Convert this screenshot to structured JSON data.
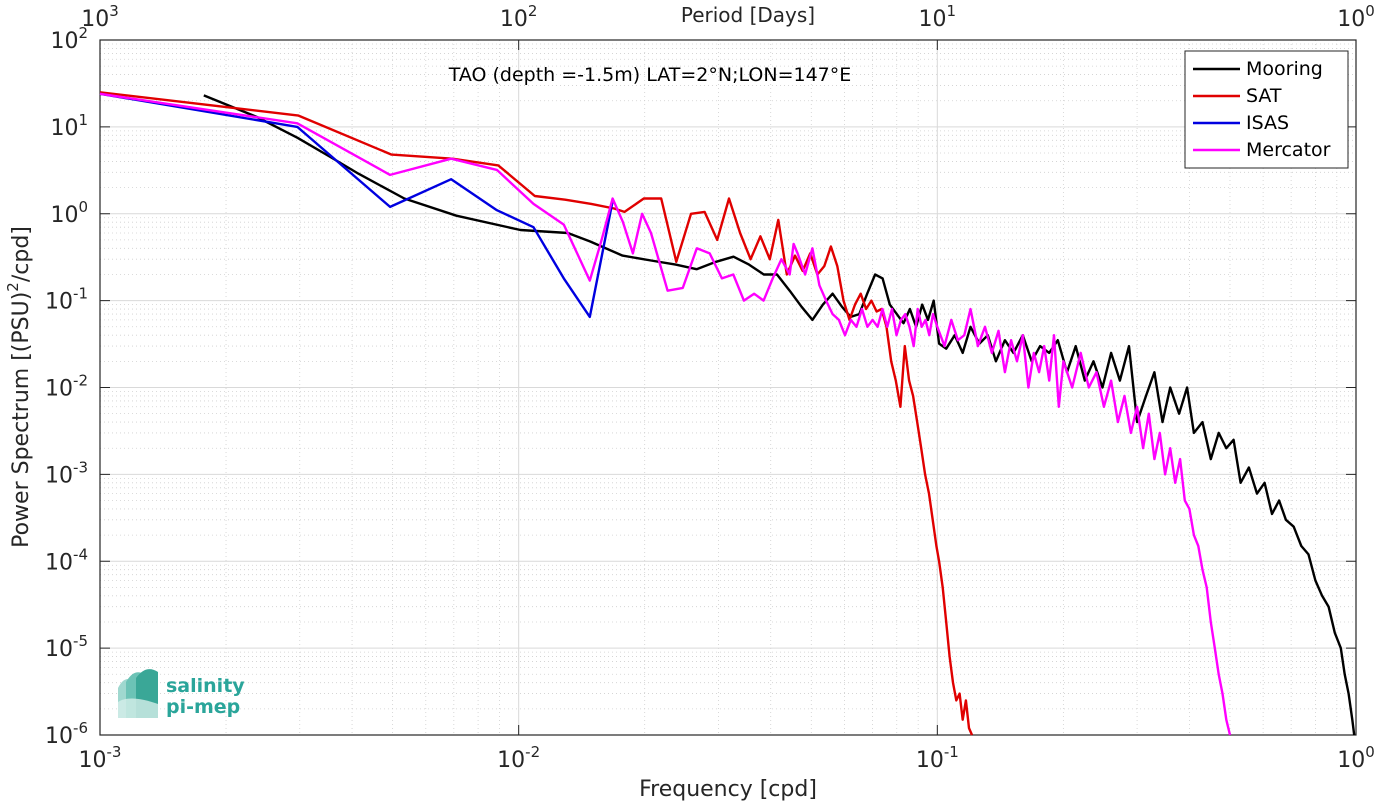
{
  "chart_data": {
    "type": "line",
    "title": "TAO (depth =-1.5m) LAT=2°N;LON=147°E",
    "xlabel": "Frequency [cpd]",
    "ylabel_main": "Power Spectrum [(PSU)",
    "ylabel_sup": "2",
    "ylabel_tail": "/cpd]",
    "top_axis_label": "Period [Days]",
    "x_scale": "log",
    "y_scale": "log",
    "xlim": [
      0.001,
      1
    ],
    "ylim": [
      1e-06,
      100
    ],
    "grid": true,
    "legend_position": "top-right",
    "x_ticks": [
      {
        "base": "10",
        "exp": "-3",
        "value": 0.001
      },
      {
        "base": "10",
        "exp": "-2",
        "value": 0.01
      },
      {
        "base": "10",
        "exp": "-1",
        "value": 0.1
      },
      {
        "base": "10",
        "exp": "0",
        "value": 1
      }
    ],
    "top_ticks": [
      {
        "base": "10",
        "exp": "3",
        "value": 0.001
      },
      {
        "base": "10",
        "exp": "2",
        "value": 0.01
      },
      {
        "base": "10",
        "exp": "1",
        "value": 0.1
      },
      {
        "base": "10",
        "exp": "0",
        "value": 1
      }
    ],
    "y_ticks": [
      {
        "base": "10",
        "exp": "2",
        "value": 100
      },
      {
        "base": "10",
        "exp": "1",
        "value": 10
      },
      {
        "base": "10",
        "exp": "0",
        "value": 1
      },
      {
        "base": "10",
        "exp": "-1",
        "value": 0.1
      },
      {
        "base": "10",
        "exp": "-2",
        "value": 0.01
      },
      {
        "base": "10",
        "exp": "-3",
        "value": 0.001
      },
      {
        "base": "10",
        "exp": "-4",
        "value": 0.0001
      },
      {
        "base": "10",
        "exp": "-5",
        "value": 1e-05
      },
      {
        "base": "10",
        "exp": "-6",
        "value": 1e-06
      }
    ],
    "series": [
      {
        "name": "Mooring",
        "color": "#000000",
        "points": [
          [
            0.00177,
            23
          ],
          [
            0.00237,
            13
          ],
          [
            0.00296,
            7.5
          ],
          [
            0.00355,
            4.5
          ],
          [
            0.00414,
            2.9
          ],
          [
            0.00533,
            1.5
          ],
          [
            0.0071,
            0.95
          ],
          [
            0.0101,
            0.65
          ],
          [
            0.0131,
            0.6
          ],
          [
            0.0148,
            0.48
          ],
          [
            0.0177,
            0.33
          ],
          [
            0.0207,
            0.29
          ],
          [
            0.0237,
            0.26
          ],
          [
            0.0266,
            0.23
          ],
          [
            0.0296,
            0.28
          ],
          [
            0.0326,
            0.32
          ],
          [
            0.0355,
            0.26
          ],
          [
            0.0385,
            0.2
          ],
          [
            0.0414,
            0.2
          ],
          [
            0.0444,
            0.13
          ],
          [
            0.0474,
            0.085
          ],
          [
            0.0503,
            0.06
          ],
          [
            0.0533,
            0.09
          ],
          [
            0.0562,
            0.12
          ],
          [
            0.0592,
            0.085
          ],
          [
            0.0621,
            0.065
          ],
          [
            0.0651,
            0.07
          ],
          [
            0.068,
            0.12
          ],
          [
            0.071,
            0.2
          ],
          [
            0.074,
            0.18
          ],
          [
            0.077,
            0.09
          ],
          [
            0.08,
            0.07
          ],
          [
            0.083,
            0.055
          ],
          [
            0.086,
            0.08
          ],
          [
            0.089,
            0.05
          ],
          [
            0.092,
            0.09
          ],
          [
            0.095,
            0.06
          ],
          [
            0.098,
            0.1
          ],
          [
            0.101,
            0.032
          ],
          [
            0.105,
            0.028
          ],
          [
            0.11,
            0.04
          ],
          [
            0.115,
            0.025
          ],
          [
            0.12,
            0.05
          ],
          [
            0.126,
            0.032
          ],
          [
            0.132,
            0.04
          ],
          [
            0.138,
            0.02
          ],
          [
            0.145,
            0.035
          ],
          [
            0.152,
            0.025
          ],
          [
            0.16,
            0.04
          ],
          [
            0.168,
            0.02
          ],
          [
            0.176,
            0.03
          ],
          [
            0.185,
            0.025
          ],
          [
            0.194,
            0.035
          ],
          [
            0.204,
            0.015
          ],
          [
            0.214,
            0.03
          ],
          [
            0.225,
            0.012
          ],
          [
            0.236,
            0.02
          ],
          [
            0.248,
            0.01
          ],
          [
            0.26,
            0.025
          ],
          [
            0.273,
            0.012
          ],
          [
            0.287,
            0.03
          ],
          [
            0.3,
            0.004
          ],
          [
            0.315,
            0.008
          ],
          [
            0.33,
            0.015
          ],
          [
            0.345,
            0.004
          ],
          [
            0.36,
            0.01
          ],
          [
            0.378,
            0.005
          ],
          [
            0.395,
            0.01
          ],
          [
            0.41,
            0.003
          ],
          [
            0.43,
            0.004
          ],
          [
            0.45,
            0.0015
          ],
          [
            0.47,
            0.003
          ],
          [
            0.49,
            0.002
          ],
          [
            0.51,
            0.0025
          ],
          [
            0.53,
            0.0008
          ],
          [
            0.555,
            0.0012
          ],
          [
            0.58,
            0.0006
          ],
          [
            0.605,
            0.0008
          ],
          [
            0.63,
            0.00035
          ],
          [
            0.655,
            0.0005
          ],
          [
            0.68,
            0.0003
          ],
          [
            0.71,
            0.00025
          ],
          [
            0.74,
            0.00015
          ],
          [
            0.77,
            0.00012
          ],
          [
            0.8,
            6e-05
          ],
          [
            0.83,
            4e-05
          ],
          [
            0.86,
            3e-05
          ],
          [
            0.89,
            1.5e-05
          ],
          [
            0.92,
            1e-05
          ],
          [
            0.94,
            5e-06
          ],
          [
            0.96,
            3e-06
          ],
          [
            0.98,
            1.5e-06
          ],
          [
            0.99,
            1e-06
          ]
        ]
      },
      {
        "name": "SAT",
        "color": "#e00000",
        "points": [
          [
            0.001,
            25
          ],
          [
            0.00199,
            17
          ],
          [
            0.00298,
            13.5
          ],
          [
            0.00497,
            4.8
          ],
          [
            0.00695,
            4.3
          ],
          [
            0.00894,
            3.6
          ],
          [
            0.01093,
            1.6
          ],
          [
            0.01292,
            1.45
          ],
          [
            0.01491,
            1.3
          ],
          [
            0.0169,
            1.15
          ],
          [
            0.0179,
            1.05
          ],
          [
            0.0199,
            1.5
          ],
          [
            0.0219,
            1.5
          ],
          [
            0.0238,
            0.28
          ],
          [
            0.0258,
            1.0
          ],
          [
            0.0278,
            1.05
          ],
          [
            0.0298,
            0.5
          ],
          [
            0.0318,
            1.5
          ],
          [
            0.0338,
            0.6
          ],
          [
            0.0358,
            0.3
          ],
          [
            0.0378,
            0.55
          ],
          [
            0.0398,
            0.3
          ],
          [
            0.0417,
            0.85
          ],
          [
            0.0437,
            0.2
          ],
          [
            0.0457,
            0.33
          ],
          [
            0.0477,
            0.22
          ],
          [
            0.0497,
            0.35
          ],
          [
            0.0517,
            0.2
          ],
          [
            0.0537,
            0.25
          ],
          [
            0.0557,
            0.42
          ],
          [
            0.0577,
            0.25
          ],
          [
            0.0597,
            0.1
          ],
          [
            0.0617,
            0.06
          ],
          [
            0.0636,
            0.09
          ],
          [
            0.0656,
            0.12
          ],
          [
            0.0676,
            0.08
          ],
          [
            0.0696,
            0.1
          ],
          [
            0.0716,
            0.075
          ],
          [
            0.0736,
            0.08
          ],
          [
            0.0756,
            0.05
          ],
          [
            0.0776,
            0.02
          ],
          [
            0.0796,
            0.012
          ],
          [
            0.0816,
            0.006
          ],
          [
            0.0836,
            0.03
          ],
          [
            0.0856,
            0.012
          ],
          [
            0.0875,
            0.008
          ],
          [
            0.0895,
            0.004
          ],
          [
            0.0915,
            0.002
          ],
          [
            0.0935,
            0.001
          ],
          [
            0.0955,
            0.0006
          ],
          [
            0.0975,
            0.0003
          ],
          [
            0.0995,
            0.00015
          ],
          [
            0.101,
            0.0001
          ],
          [
            0.103,
            5e-05
          ],
          [
            0.105,
            2e-05
          ],
          [
            0.107,
            8e-06
          ],
          [
            0.109,
            4e-06
          ],
          [
            0.111,
            2.5e-06
          ],
          [
            0.113,
            3e-06
          ],
          [
            0.115,
            1.5e-06
          ],
          [
            0.117,
            2.5e-06
          ],
          [
            0.119,
            1.2e-06
          ],
          [
            0.121,
            1e-06
          ]
        ]
      },
      {
        "name": "ISAS",
        "color": "#0000e0",
        "points": [
          [
            0.001,
            24
          ],
          [
            0.00296,
            10
          ],
          [
            0.00493,
            1.2
          ],
          [
            0.0069,
            2.5
          ],
          [
            0.00887,
            1.1
          ],
          [
            0.01085,
            0.7
          ],
          [
            0.01282,
            0.18
          ],
          [
            0.01479,
            0.065
          ],
          [
            0.01676,
            1.4
          ]
        ]
      },
      {
        "name": "Mercator",
        "color": "#ff00ff",
        "points": [
          [
            0.001,
            24
          ],
          [
            0.00296,
            11
          ],
          [
            0.00493,
            2.8
          ],
          [
            0.0069,
            4.3
          ],
          [
            0.00887,
            3.2
          ],
          [
            0.01085,
            1.3
          ],
          [
            0.01282,
            0.75
          ],
          [
            0.01479,
            0.17
          ],
          [
            0.01578,
            0.5
          ],
          [
            0.01676,
            1.5
          ],
          [
            0.01775,
            0.8
          ],
          [
            0.01874,
            0.35
          ],
          [
            0.01972,
            1.0
          ],
          [
            0.02071,
            0.6
          ],
          [
            0.02268,
            0.13
          ],
          [
            0.02466,
            0.14
          ],
          [
            0.02663,
            0.4
          ],
          [
            0.0286,
            0.35
          ],
          [
            0.03058,
            0.18
          ],
          [
            0.03255,
            0.2
          ],
          [
            0.03452,
            0.1
          ],
          [
            0.0365,
            0.12
          ],
          [
            0.03847,
            0.1
          ],
          [
            0.04044,
            0.18
          ],
          [
            0.04241,
            0.3
          ],
          [
            0.04439,
            0.2
          ],
          [
            0.04537,
            0.45
          ],
          [
            0.04636,
            0.35
          ],
          [
            0.04833,
            0.2
          ],
          [
            0.05031,
            0.4
          ],
          [
            0.05228,
            0.15
          ],
          [
            0.05425,
            0.1
          ],
          [
            0.05622,
            0.07
          ],
          [
            0.0582,
            0.06
          ],
          [
            0.06017,
            0.04
          ],
          [
            0.06214,
            0.06
          ],
          [
            0.06412,
            0.05
          ],
          [
            0.06609,
            0.08
          ],
          [
            0.06806,
            0.05
          ],
          [
            0.07004,
            0.06
          ],
          [
            0.07201,
            0.05
          ],
          [
            0.07398,
            0.08
          ],
          [
            0.07595,
            0.05
          ],
          [
            0.07793,
            0.08
          ],
          [
            0.0799,
            0.04
          ],
          [
            0.08187,
            0.06
          ],
          [
            0.08385,
            0.07
          ],
          [
            0.08582,
            0.05
          ],
          [
            0.08779,
            0.03
          ],
          [
            0.08977,
            0.08
          ],
          [
            0.09174,
            0.05
          ],
          [
            0.09371,
            0.06
          ],
          [
            0.09569,
            0.04
          ],
          [
            0.09766,
            0.07
          ],
          [
            0.1,
            0.05
          ],
          [
            0.104,
            0.03
          ],
          [
            0.108,
            0.06
          ],
          [
            0.112,
            0.035
          ],
          [
            0.116,
            0.04
          ],
          [
            0.12,
            0.08
          ],
          [
            0.125,
            0.03
          ],
          [
            0.13,
            0.05
          ],
          [
            0.135,
            0.025
          ],
          [
            0.14,
            0.045
          ],
          [
            0.145,
            0.015
          ],
          [
            0.15,
            0.035
          ],
          [
            0.155,
            0.02
          ],
          [
            0.16,
            0.04
          ],
          [
            0.165,
            0.01
          ],
          [
            0.17,
            0.025
          ],
          [
            0.175,
            0.015
          ],
          [
            0.18,
            0.03
          ],
          [
            0.185,
            0.012
          ],
          [
            0.19,
            0.04
          ],
          [
            0.195,
            0.006
          ],
          [
            0.2,
            0.02
          ],
          [
            0.21,
            0.01
          ],
          [
            0.22,
            0.025
          ],
          [
            0.23,
            0.01
          ],
          [
            0.24,
            0.015
          ],
          [
            0.25,
            0.006
          ],
          [
            0.26,
            0.012
          ],
          [
            0.27,
            0.004
          ],
          [
            0.28,
            0.008
          ],
          [
            0.29,
            0.003
          ],
          [
            0.3,
            0.006
          ],
          [
            0.31,
            0.002
          ],
          [
            0.32,
            0.005
          ],
          [
            0.33,
            0.0015
          ],
          [
            0.34,
            0.003
          ],
          [
            0.35,
            0.001
          ],
          [
            0.36,
            0.002
          ],
          [
            0.37,
            0.0008
          ],
          [
            0.38,
            0.0015
          ],
          [
            0.39,
            0.0005
          ],
          [
            0.4,
            0.0004
          ],
          [
            0.41,
            0.0002
          ],
          [
            0.42,
            0.00015
          ],
          [
            0.43,
            8e-05
          ],
          [
            0.44,
            5e-05
          ],
          [
            0.45,
            2e-05
          ],
          [
            0.46,
            1e-05
          ],
          [
            0.47,
            5e-06
          ],
          [
            0.48,
            3e-06
          ],
          [
            0.49,
            1.5e-06
          ],
          [
            0.5,
            1e-06
          ]
        ]
      }
    ]
  },
  "logo": {
    "line1": "salinity",
    "line2": "pi-mep",
    "color": "#2aa59a"
  }
}
